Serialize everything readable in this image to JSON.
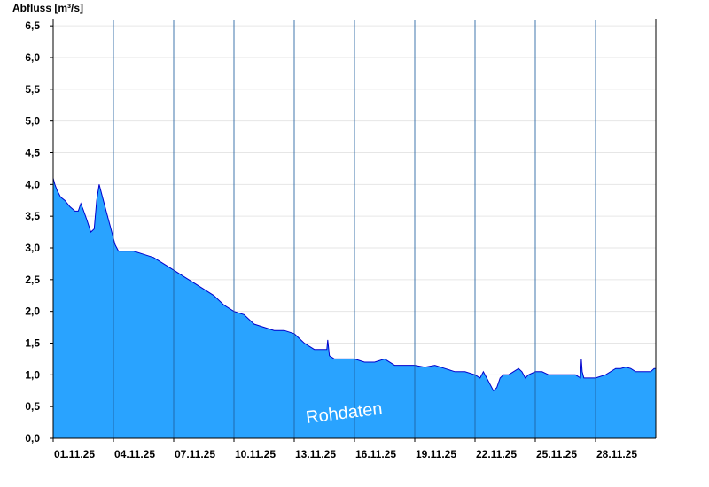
{
  "chart_data": {
    "type": "area",
    "title": "",
    "ylabel": "Abfluss [m³/s]",
    "xlabel": "",
    "ylim": [
      0,
      6.6
    ],
    "xlim": [
      "2025-11-01T00:00",
      "2025-12-01T00:00"
    ],
    "grid": true,
    "yticks": [
      "0,0",
      "0,5",
      "1,0",
      "1,5",
      "2,0",
      "2,5",
      "3,0",
      "3,5",
      "4,0",
      "4,5",
      "5,0",
      "5,5",
      "6,0",
      "6,5"
    ],
    "xticks": [
      "01.11.25",
      "04.11.25",
      "07.11.25",
      "10.11.25",
      "13.11.25",
      "16.11.25",
      "19.11.25",
      "22.11.25",
      "25.11.25",
      "28.11.25"
    ],
    "watermark": "Rohdaten",
    "colors": {
      "fill": "#29a3ff",
      "line": "#0000cc"
    },
    "series": [
      {
        "x": [
          "2025-11-01T00:00",
          "2025-11-01T02:00",
          "2025-11-01T05:00",
          "2025-11-01T09:00",
          "2025-11-01T14:00",
          "2025-11-01T20:00",
          "2025-11-02T02:00",
          "2025-11-02T06:00",
          "2025-11-02T09:00",
          "2025-11-02T12:00",
          "2025-11-02T16:00",
          "2025-11-02T21:00",
          "2025-11-03T01:00",
          "2025-11-03T04:00",
          "2025-11-03T07:00",
          "2025-11-03T11:00",
          "2025-11-03T16:00",
          "2025-11-03T21:00",
          "2025-11-04T02:00",
          "2025-11-04T06:00",
          "2025-11-05T00:00",
          "2025-11-05T12:00",
          "2025-11-06T00:00",
          "2025-11-06T12:00",
          "2025-11-07T00:00",
          "2025-11-07T12:00",
          "2025-11-08T00:00",
          "2025-11-08T12:00",
          "2025-11-09T00:00",
          "2025-11-09T12:00",
          "2025-11-10T00:00",
          "2025-11-10T12:00",
          "2025-11-11T00:00",
          "2025-11-11T12:00",
          "2025-11-12T00:00",
          "2025-11-12T12:00",
          "2025-11-13T00:00",
          "2025-11-13T12:00",
          "2025-11-14T00:00",
          "2025-11-14T12:00",
          "2025-11-14T15:00",
          "2025-11-14T16:00",
          "2025-11-14T18:00",
          "2025-11-15T00:00",
          "2025-11-15T12:00",
          "2025-11-16T00:00",
          "2025-11-16T12:00",
          "2025-11-17T00:00",
          "2025-11-17T12:00",
          "2025-11-18T00:00",
          "2025-11-18T12:00",
          "2025-11-19T00:00",
          "2025-11-19T12:00",
          "2025-11-20T00:00",
          "2025-11-20T12:00",
          "2025-11-21T00:00",
          "2025-11-21T12:00",
          "2025-11-22T00:00",
          "2025-11-22T06:00",
          "2025-11-22T10:00",
          "2025-11-22T14:00",
          "2025-11-22T18:00",
          "2025-11-22T22:00",
          "2025-11-23T02:00",
          "2025-11-23T06:00",
          "2025-11-23T10:00",
          "2025-11-23T16:00",
          "2025-11-23T22:00",
          "2025-11-24T04:00",
          "2025-11-24T08:00",
          "2025-11-24T12:00",
          "2025-11-24T16:00",
          "2025-11-25T00:00",
          "2025-11-25T08:00",
          "2025-11-25T16:00",
          "2025-11-26T00:00",
          "2025-11-26T08:00",
          "2025-11-26T16:00",
          "2025-11-27T00:00",
          "2025-11-27T06:00",
          "2025-11-27T07:00",
          "2025-11-27T08:00",
          "2025-11-27T10:00",
          "2025-11-27T12:00",
          "2025-11-27T18:00",
          "2025-11-28T00:00",
          "2025-11-28T12:00",
          "2025-11-29T00:00",
          "2025-11-29T06:00",
          "2025-11-29T12:00",
          "2025-11-29T18:00",
          "2025-11-30T00:00",
          "2025-11-30T06:00",
          "2025-11-30T12:00",
          "2025-11-30T18:00",
          "2025-11-30T22:00",
          "2025-12-01T00:00"
        ],
        "y": [
          4.1,
          4.0,
          3.9,
          3.8,
          3.75,
          3.65,
          3.58,
          3.58,
          3.7,
          3.6,
          3.45,
          3.25,
          3.3,
          3.75,
          4.0,
          3.8,
          3.55,
          3.3,
          3.05,
          2.95,
          2.95,
          2.9,
          2.85,
          2.75,
          2.65,
          2.55,
          2.45,
          2.35,
          2.25,
          2.1,
          2.0,
          1.95,
          1.8,
          1.75,
          1.7,
          1.7,
          1.65,
          1.5,
          1.4,
          1.4,
          1.4,
          1.55,
          1.3,
          1.25,
          1.25,
          1.25,
          1.2,
          1.2,
          1.25,
          1.15,
          1.15,
          1.15,
          1.12,
          1.15,
          1.1,
          1.05,
          1.05,
          1.0,
          0.95,
          1.05,
          0.95,
          0.85,
          0.75,
          0.8,
          0.95,
          1.0,
          1.0,
          1.05,
          1.1,
          1.05,
          0.95,
          1.0,
          1.05,
          1.05,
          1.0,
          1.0,
          1.0,
          1.0,
          1.0,
          0.95,
          1.25,
          1.05,
          0.95,
          0.95,
          0.95,
          0.95,
          1.0,
          1.1,
          1.1,
          1.12,
          1.1,
          1.05,
          1.05,
          1.05,
          1.05,
          1.1,
          1.1
        ]
      }
    ]
  }
}
